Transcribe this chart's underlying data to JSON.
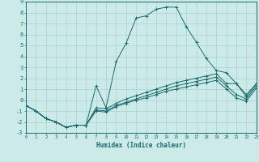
{
  "xlabel": "Humidex (Indice chaleur)",
  "background_color": "#cceae8",
  "grid_color": "#aad4d0",
  "line_color": "#1a6b6b",
  "xlim": [
    0,
    23
  ],
  "ylim": [
    -3,
    9
  ],
  "xticks": [
    0,
    1,
    2,
    3,
    4,
    5,
    6,
    7,
    8,
    9,
    10,
    11,
    12,
    13,
    14,
    15,
    16,
    17,
    18,
    19,
    20,
    21,
    22,
    23
  ],
  "yticks": [
    -3,
    -2,
    -1,
    0,
    1,
    2,
    3,
    4,
    5,
    6,
    7,
    8,
    9
  ],
  "series": [
    {
      "x": [
        0,
        1,
        2,
        3,
        4,
        5,
        6,
        7,
        8,
        9,
        10,
        11,
        12,
        13,
        14,
        15,
        16,
        17,
        18,
        19,
        20,
        21,
        22,
        23
      ],
      "y": [
        -0.5,
        -1.0,
        -1.7,
        -2.0,
        -2.5,
        -2.3,
        -2.3,
        1.3,
        -0.7,
        3.5,
        5.2,
        7.5,
        7.7,
        8.3,
        8.5,
        8.5,
        6.7,
        5.3,
        3.8,
        2.7,
        2.5,
        1.5,
        0.5,
        1.5
      ]
    },
    {
      "x": [
        0,
        1,
        2,
        3,
        4,
        5,
        6,
        7,
        8,
        9,
        10,
        11,
        12,
        13,
        14,
        15,
        16,
        17,
        18,
        19,
        20,
        21,
        22,
        23
      ],
      "y": [
        -0.5,
        -1.0,
        -1.7,
        -2.0,
        -2.5,
        -2.3,
        -2.3,
        -0.7,
        -0.8,
        -0.3,
        0.1,
        0.4,
        0.7,
        1.0,
        1.3,
        1.6,
        1.8,
        2.0,
        2.2,
        2.4,
        1.5,
        1.5,
        0.3,
        1.5
      ]
    },
    {
      "x": [
        0,
        1,
        2,
        3,
        4,
        5,
        6,
        7,
        8,
        9,
        10,
        11,
        12,
        13,
        14,
        15,
        16,
        17,
        18,
        19,
        20,
        21,
        22,
        23
      ],
      "y": [
        -0.5,
        -1.0,
        -1.7,
        -2.0,
        -2.5,
        -2.3,
        -2.3,
        -0.9,
        -1.0,
        -0.5,
        -0.2,
        0.1,
        0.4,
        0.7,
        1.0,
        1.3,
        1.5,
        1.7,
        1.9,
        2.1,
        1.3,
        0.5,
        0.1,
        1.3
      ]
    },
    {
      "x": [
        0,
        1,
        2,
        3,
        4,
        5,
        6,
        7,
        8,
        9,
        10,
        11,
        12,
        13,
        14,
        15,
        16,
        17,
        18,
        19,
        20,
        21,
        22,
        23
      ],
      "y": [
        -0.5,
        -1.0,
        -1.7,
        -2.0,
        -2.5,
        -2.3,
        -2.3,
        -1.0,
        -1.1,
        -0.6,
        -0.3,
        0.0,
        0.2,
        0.5,
        0.8,
        1.0,
        1.2,
        1.4,
        1.6,
        1.8,
        1.0,
        0.2,
        -0.1,
        1.1
      ]
    }
  ]
}
